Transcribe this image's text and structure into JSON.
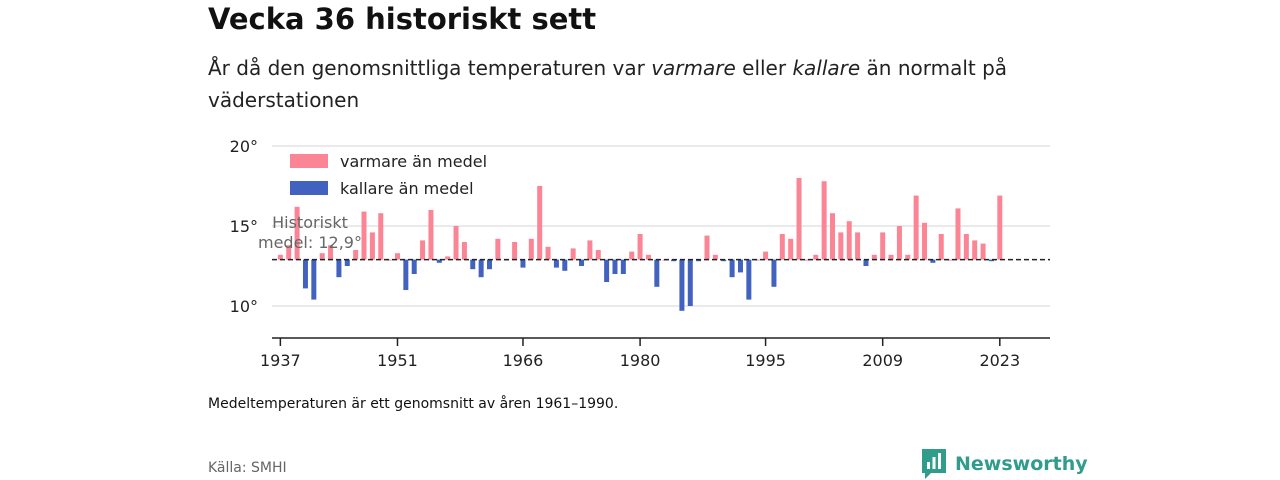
{
  "title": "Vecka 36 historiskt sett",
  "subtitle": {
    "part1": "År då den genomsnittliga temperaturen var ",
    "warm_word": "varmare",
    "part2": " eller ",
    "cold_word": "kallare",
    "part3": " än normalt på väderstationen"
  },
  "note": "Medeltemperaturen är ett genomsnitt av åren 1961–1990.",
  "source": "Källa: SMHI",
  "brand": "Newsworthy",
  "colors": {
    "warm": "#fb8595",
    "cold": "#4262bf",
    "brand": "#2f9c8c"
  },
  "chart_data": {
    "type": "bar",
    "baseline": 12.9,
    "baseline_label": [
      "Historiskt",
      "medel: 12,9°"
    ],
    "xlim": [
      1936,
      2029
    ],
    "ylim": [
      8,
      20
    ],
    "y_ticks": [
      {
        "value": 10,
        "label": "10°"
      },
      {
        "value": 15,
        "label": "15°"
      },
      {
        "value": 20,
        "label": "20°"
      }
    ],
    "x_ticks": [
      1937,
      1951,
      1966,
      1980,
      1995,
      2009,
      2023
    ],
    "grid": true,
    "legend": [
      {
        "label": "varmare än medel",
        "color": "#fb8595"
      },
      {
        "label": "kallare än medel",
        "color": "#4262bf"
      }
    ],
    "legend_position": "top-left",
    "series": [
      {
        "x": [
          1937,
          1938,
          1939,
          1940,
          1941,
          1942,
          1943,
          1944,
          1945,
          1946,
          1947,
          1948,
          1949,
          1950,
          1951,
          1952,
          1953,
          1954,
          1955,
          1956,
          1957,
          1958,
          1959,
          1960,
          1961,
          1962,
          1963,
          1964,
          1965,
          1966,
          1967,
          1968,
          1969,
          1970,
          1971,
          1972,
          1973,
          1974,
          1975,
          1976,
          1977,
          1978,
          1979,
          1980,
          1981,
          1982,
          1983,
          1984,
          1985,
          1986,
          1987,
          1988,
          1989,
          1990,
          1991,
          1992,
          1993,
          1994,
          1995,
          1996,
          1997,
          1998,
          1999,
          2000,
          2001,
          2002,
          2003,
          2004,
          2005,
          2006,
          2007,
          2008,
          2009,
          2010,
          2011,
          2012,
          2013,
          2014,
          2015,
          2016,
          2017,
          2018,
          2019,
          2020,
          2021,
          2022,
          2023
        ],
        "values": [
          13.2,
          13.8,
          16.2,
          11.1,
          10.4,
          13.3,
          13.8,
          11.8,
          12.5,
          13.5,
          15.9,
          14.6,
          15.8,
          12.9,
          13.3,
          11.0,
          12.0,
          14.1,
          16.0,
          12.7,
          13.1,
          15.0,
          14.0,
          12.3,
          11.8,
          12.3,
          14.2,
          12.9,
          14.0,
          12.4,
          14.2,
          17.5,
          13.7,
          12.4,
          12.2,
          13.6,
          12.5,
          14.1,
          13.5,
          11.5,
          12.0,
          12.0,
          13.4,
          14.5,
          13.2,
          11.2,
          12.9,
          12.8,
          9.7,
          10.0,
          12.8,
          14.4,
          13.2,
          12.8,
          11.8,
          12.1,
          10.4,
          12.9,
          13.4,
          11.2,
          14.5,
          14.2,
          18.0,
          12.9,
          13.2,
          17.8,
          15.8,
          14.6,
          15.3,
          14.6,
          12.5,
          13.2,
          14.6,
          13.2,
          15.0,
          13.2,
          16.9,
          15.2,
          12.7,
          14.5,
          12.9,
          16.1,
          14.5,
          14.1,
          13.9,
          12.8,
          16.9
        ]
      }
    ]
  }
}
